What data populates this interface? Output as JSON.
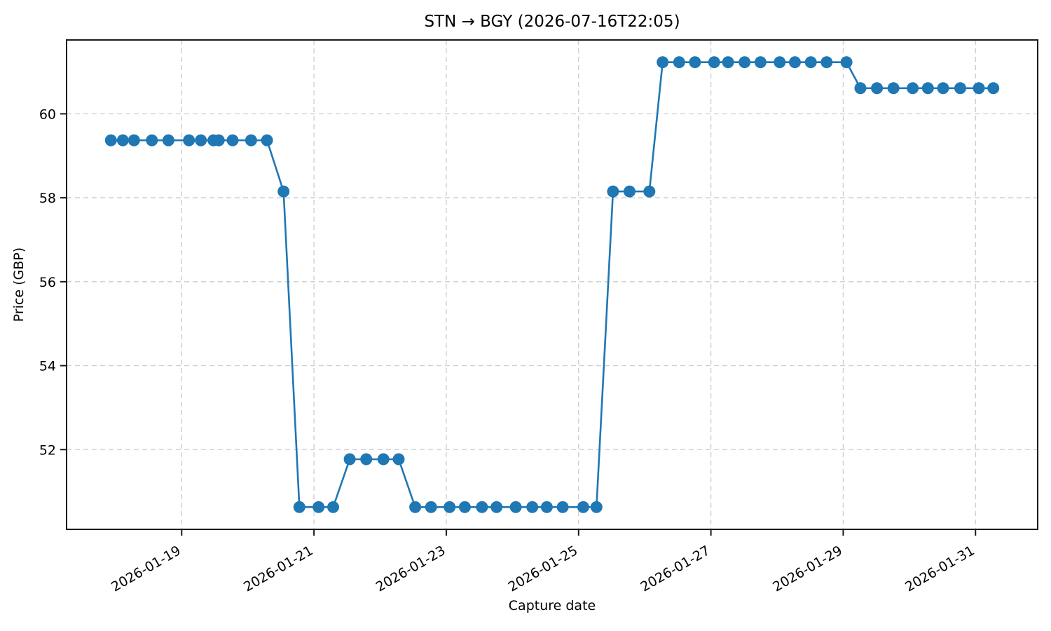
{
  "chart_data": {
    "type": "line",
    "title": "STN → BGY (2026-07-16T22:05)",
    "xlabel": "Capture date",
    "ylabel": "Price (GBP)",
    "x_unit": "decimal day of January 2026 (e.g. 17.93 ≈ 2026-01-17 22:00)",
    "xlim": [
      17.26,
      31.94
    ],
    "ylim": [
      50.1,
      61.76
    ],
    "x_ticks": [
      {
        "value": 19,
        "label": "2026-01-19"
      },
      {
        "value": 21,
        "label": "2026-01-21"
      },
      {
        "value": 23,
        "label": "2026-01-23"
      },
      {
        "value": 25,
        "label": "2026-01-25"
      },
      {
        "value": 27,
        "label": "2026-01-27"
      },
      {
        "value": 29,
        "label": "2026-01-29"
      },
      {
        "value": 31,
        "label": "2026-01-31"
      }
    ],
    "y_ticks": [
      52,
      54,
      56,
      58,
      60
    ],
    "grid": {
      "show": true,
      "style": "dashed",
      "color": "#cccccc"
    },
    "line_color": "#1f77b4",
    "marker": "circle",
    "marker_radius": 8.5,
    "line_width": 2.6,
    "points": [
      [
        17.93,
        59.37
      ],
      [
        18.11,
        59.37
      ],
      [
        18.28,
        59.37
      ],
      [
        18.55,
        59.37
      ],
      [
        18.8,
        59.37
      ],
      [
        19.11,
        59.37
      ],
      [
        19.29,
        59.37
      ],
      [
        19.48,
        59.37
      ],
      [
        19.56,
        59.37
      ],
      [
        19.77,
        59.37
      ],
      [
        20.05,
        59.37
      ],
      [
        20.29,
        59.37
      ],
      [
        20.54,
        58.15
      ],
      [
        20.78,
        50.63
      ],
      [
        21.07,
        50.63
      ],
      [
        21.29,
        50.63
      ],
      [
        21.54,
        51.77
      ],
      [
        21.79,
        51.77
      ],
      [
        22.05,
        51.77
      ],
      [
        22.28,
        51.77
      ],
      [
        22.53,
        50.63
      ],
      [
        22.77,
        50.63
      ],
      [
        23.05,
        50.63
      ],
      [
        23.28,
        50.63
      ],
      [
        23.54,
        50.63
      ],
      [
        23.76,
        50.63
      ],
      [
        24.05,
        50.63
      ],
      [
        24.3,
        50.63
      ],
      [
        24.52,
        50.63
      ],
      [
        24.76,
        50.63
      ],
      [
        25.07,
        50.63
      ],
      [
        25.27,
        50.63
      ],
      [
        25.52,
        58.15
      ],
      [
        25.77,
        58.15
      ],
      [
        26.07,
        58.15
      ],
      [
        26.27,
        61.23
      ],
      [
        26.52,
        61.23
      ],
      [
        26.76,
        61.23
      ],
      [
        27.05,
        61.23
      ],
      [
        27.26,
        61.23
      ],
      [
        27.51,
        61.23
      ],
      [
        27.75,
        61.23
      ],
      [
        28.04,
        61.23
      ],
      [
        28.27,
        61.23
      ],
      [
        28.51,
        61.23
      ],
      [
        28.75,
        61.23
      ],
      [
        29.05,
        61.23
      ],
      [
        29.26,
        60.61
      ],
      [
        29.51,
        60.61
      ],
      [
        29.76,
        60.61
      ],
      [
        30.05,
        60.61
      ],
      [
        30.28,
        60.61
      ],
      [
        30.51,
        60.61
      ],
      [
        30.77,
        60.61
      ],
      [
        31.05,
        60.61
      ],
      [
        31.27,
        60.61
      ]
    ]
  },
  "style": {
    "spine_color": "#1a1a1a",
    "background": "#ffffff"
  }
}
